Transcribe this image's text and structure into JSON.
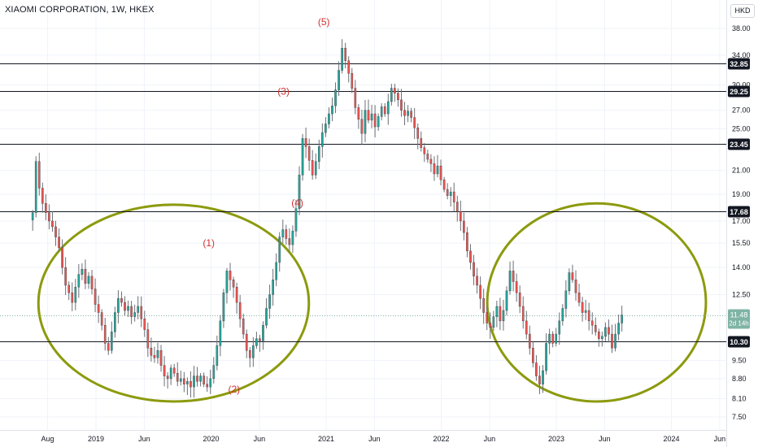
{
  "header": {
    "title": "XIAOMI CORPORATION, 1W, HKEX",
    "currency": "HKD"
  },
  "chart_data": {
    "type": "candlestick",
    "symbol": "XIAOMI CORPORATION",
    "interval": "1W",
    "exchange": "HKEX",
    "y_ticks": [
      38.0,
      34.0,
      30.0,
      27.0,
      25.0,
      21.0,
      19.0,
      17.0,
      15.5,
      14.0,
      12.5,
      9.5,
      8.8,
      8.1,
      7.5
    ],
    "y_tick_labels": [
      "38.00",
      "34.00",
      "30.00",
      "27.00",
      "25.00",
      "21.00",
      "19.00",
      "17.00",
      "15.50",
      "14.00",
      "12.50",
      "9.50",
      "8.80",
      "8.10",
      "7.50"
    ],
    "x_ticks": [
      {
        "label": "Aug",
        "t": 2018.58
      },
      {
        "label": "2019",
        "t": 2019.0
      },
      {
        "label": "Jun",
        "t": 2019.42
      },
      {
        "label": "2020",
        "t": 2020.0
      },
      {
        "label": "Jun",
        "t": 2020.42
      },
      {
        "label": "2021",
        "t": 2021.0
      },
      {
        "label": "Jun",
        "t": 2021.42
      },
      {
        "label": "2022",
        "t": 2022.0
      },
      {
        "label": "Jun",
        "t": 2022.42
      },
      {
        "label": "2023",
        "t": 2023.0
      },
      {
        "label": "Jun",
        "t": 2023.42
      },
      {
        "label": "2024",
        "t": 2024.0
      },
      {
        "label": "Jun",
        "t": 2024.42
      }
    ],
    "horizontal_levels": [
      {
        "price": 32.85,
        "label": "32.85"
      },
      {
        "price": 29.25,
        "label": "29.25"
      },
      {
        "price": 23.45,
        "label": "23.45"
      },
      {
        "price": 17.68,
        "label": "17.68"
      },
      {
        "price": 10.3,
        "label": "10.30"
      }
    ],
    "last_price": {
      "price": 11.48,
      "label": "11.48",
      "countdown": "2d 14h"
    },
    "wave_labels": [
      {
        "text": "(1)",
        "t": 2019.98,
        "price": 15.3
      },
      {
        "text": "(2)",
        "t": 2020.2,
        "price": 8.3
      },
      {
        "text": "(3)",
        "t": 2020.63,
        "price": 28.8
      },
      {
        "text": "(4)",
        "t": 2020.75,
        "price": 18.1
      },
      {
        "text": "(5)",
        "t": 2020.98,
        "price": 38.5
      }
    ],
    "ellipses": [
      {
        "t_min": 2018.5,
        "t_max": 2020.85,
        "price_min": 8.0,
        "price_max": 18.2
      },
      {
        "t_min": 2022.4,
        "t_max": 2024.3,
        "price_min": 8.0,
        "price_max": 18.3
      }
    ],
    "weekly_closes": [
      17.6,
      21.8,
      19.5,
      18.3,
      17.6,
      17.0,
      16.6,
      15.9,
      15.2,
      14.0,
      13.0,
      12.6,
      12.1,
      12.9,
      13.6,
      13.9,
      13.1,
      13.5,
      12.8,
      12.0,
      11.6,
      11.0,
      10.2,
      9.9,
      10.7,
      11.6,
      12.3,
      12.1,
      11.7,
      11.9,
      11.4,
      11.6,
      11.9,
      11.3,
      10.8,
      10.0,
      9.7,
      9.6,
      9.9,
      9.3,
      8.9,
      8.8,
      9.2,
      9.0,
      8.7,
      8.8,
      8.6,
      8.7,
      8.5,
      8.9,
      8.7,
      8.9,
      8.6,
      8.5,
      8.8,
      9.3,
      10.1,
      11.2,
      12.6,
      13.8,
      13.3,
      12.9,
      12.1,
      11.3,
      10.6,
      9.9,
      9.6,
      10.1,
      10.4,
      10.3,
      11.0,
      11.8,
      12.5,
      13.3,
      14.3,
      15.9,
      16.4,
      15.8,
      15.4,
      16.3,
      17.9,
      20.6,
      24.0,
      23.2,
      21.9,
      20.6,
      21.8,
      23.2,
      24.6,
      25.5,
      26.6,
      27.5,
      29.4,
      31.9,
      35.0,
      33.2,
      31.5,
      29.6,
      27.3,
      26.0,
      24.5,
      27.0,
      25.9,
      26.6,
      25.2,
      26.3,
      27.4,
      26.6,
      28.0,
      29.6,
      29.0,
      28.2,
      27.0,
      26.4,
      26.9,
      26.2,
      25.1,
      24.0,
      23.1,
      22.5,
      22.0,
      21.6,
      20.7,
      21.4,
      20.2,
      19.4,
      18.9,
      19.2,
      18.4,
      17.7,
      17.0,
      16.2,
      15.0,
      14.3,
      13.5,
      13.0,
      12.3,
      11.6,
      11.1,
      10.9,
      11.4,
      11.9,
      11.2,
      11.7,
      12.7,
      13.8,
      13.2,
      12.6,
      11.9,
      11.2,
      10.6,
      10.0,
      9.4,
      8.9,
      8.6,
      9.1,
      10.2,
      10.6,
      10.2,
      10.6,
      11.2,
      11.8,
      12.7,
      13.7,
      13.3,
      12.6,
      12.1,
      11.6,
      11.7,
      11.2,
      11.0,
      10.7,
      10.4,
      10.5,
      10.9,
      10.6,
      10.0,
      10.6,
      11.1,
      11.48
    ]
  }
}
